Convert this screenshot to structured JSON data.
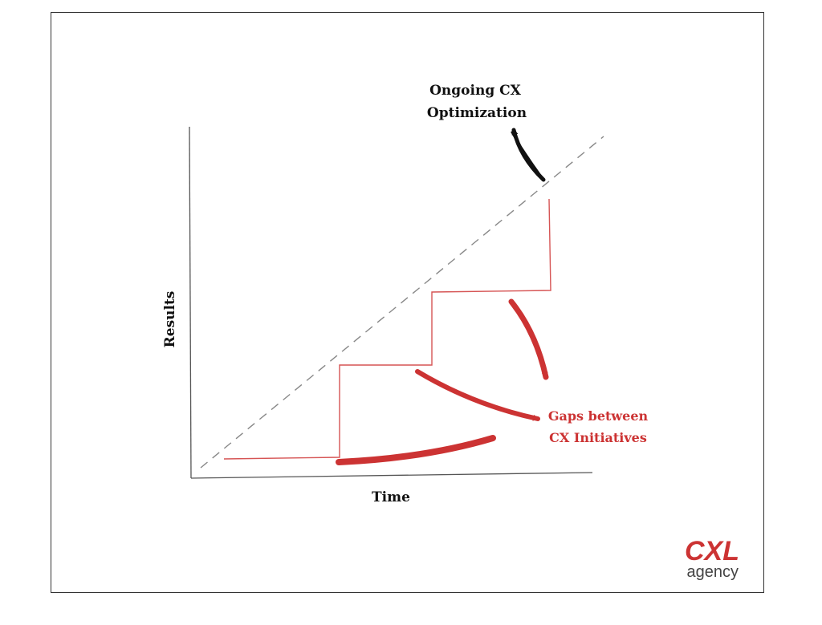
{
  "diagram": {
    "y_axis_label": "Results",
    "x_axis_label": "Time",
    "trend_label_line1": "Ongoing CX",
    "trend_label_line2": "Optimization",
    "gaps_label_line1": "Gaps between",
    "gaps_label_line2": "CX Initiatives"
  },
  "logo": {
    "mark": "CXL",
    "subtitle": "agency"
  },
  "colors": {
    "accent_red": "#cc3333",
    "ink": "#111111",
    "axis": "#555555",
    "dashed": "#888888",
    "border": "#333333"
  },
  "icons": {
    "trend_arrow": "curved-arrow-black",
    "gap_arrows": "curved-arrow-red"
  }
}
